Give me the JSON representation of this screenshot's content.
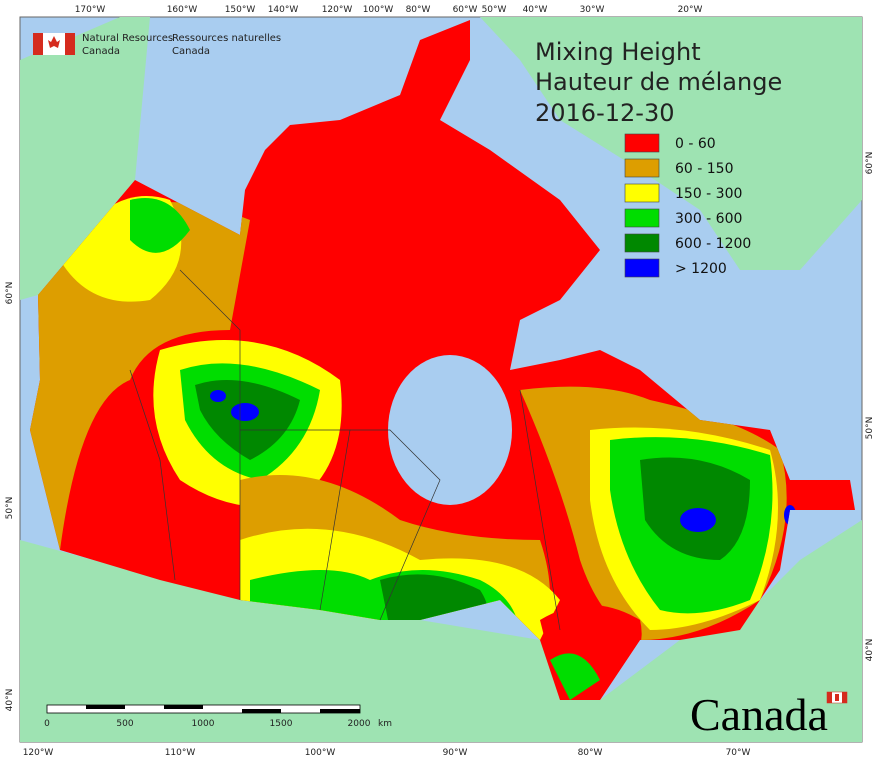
{
  "header": {
    "org_en": [
      "Natural Resources",
      "Canada"
    ],
    "org_fr": [
      "Ressources naturelles",
      "Canada"
    ]
  },
  "title": [
    "Mixing Height",
    "Hauteur de mélange"
  ],
  "date": "2016-12-30",
  "legend": [
    {
      "label": "0 - 60",
      "color": "#ff0000"
    },
    {
      "label": "60 - 150",
      "color": "#dd9e00"
    },
    {
      "label": "150 - 300",
      "color": "#ffff00"
    },
    {
      "label": "300 - 600",
      "color": "#00dd00"
    },
    {
      "label": "600 - 1200",
      "color": "#008800"
    },
    {
      "label": "> 1200",
      "color": "#0000ff"
    }
  ],
  "top_labels": [
    "170°W",
    "160°W",
    "150°W",
    "140°W",
    "120°W",
    "100°W",
    "80°W",
    "60°W",
    "50°W",
    "40°W",
    "30°W",
    "20°W"
  ],
  "bottom_labels": [
    "120°W",
    "110°W",
    "100°W",
    "90°W",
    "80°W",
    "70°W"
  ],
  "left_labels": [
    "60°N",
    "50°N",
    "40°N"
  ],
  "right_labels": [
    "60°N",
    "50°N",
    "40°N"
  ],
  "scale": {
    "ticks": [
      "0",
      "500",
      "1000",
      "1500",
      "2000"
    ],
    "unit": "km"
  },
  "wordmark": "Canada"
}
